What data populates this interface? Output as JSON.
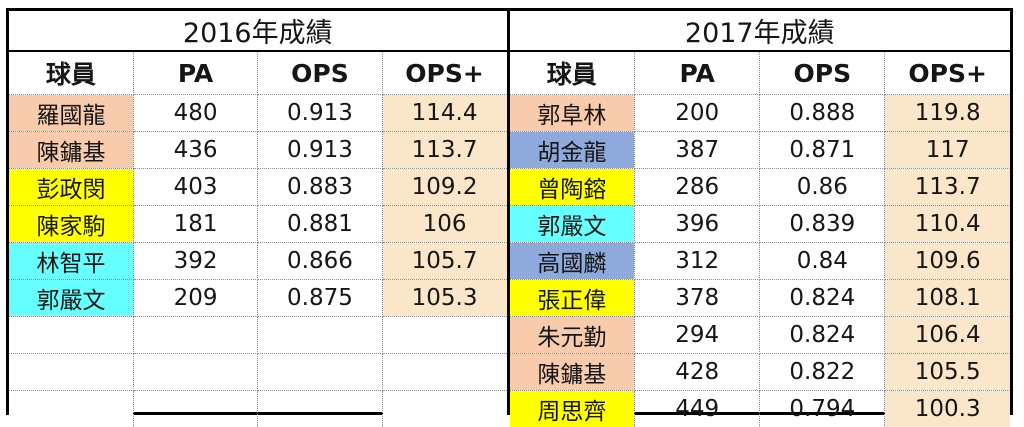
{
  "colors": {
    "salmon": "#F8CBAD",
    "yellow": "#FFFF00",
    "cyan": "#66FFFF",
    "blue": "#8EA9DB",
    "cream": "#FAE6C8",
    "white": "#FFFFFF"
  },
  "chart_data": [
    {
      "type": "table",
      "title": "2016年成績",
      "columns": [
        "球員",
        "PA",
        "OPS",
        "OPS+"
      ],
      "rows": [
        {
          "player": "羅國龍",
          "pa": "480",
          "ops": "0.913",
          "ops_plus": "114.4",
          "name_bg": "salmon",
          "opsplus_bg": "cream"
        },
        {
          "player": "陳鏞基",
          "pa": "436",
          "ops": "0.913",
          "ops_plus": "113.7",
          "name_bg": "salmon",
          "opsplus_bg": "cream"
        },
        {
          "player": "彭政閔",
          "pa": "403",
          "ops": "0.883",
          "ops_plus": "109.2",
          "name_bg": "yellow",
          "opsplus_bg": "cream"
        },
        {
          "player": "陳家駒",
          "pa": "181",
          "ops": "0.881",
          "ops_plus": "106",
          "name_bg": "yellow",
          "opsplus_bg": "cream"
        },
        {
          "player": "林智平",
          "pa": "392",
          "ops": "0.866",
          "ops_plus": "105.7",
          "name_bg": "cyan",
          "opsplus_bg": "cream"
        },
        {
          "player": "郭嚴文",
          "pa": "209",
          "ops": "0.875",
          "ops_plus": "105.3",
          "name_bg": "cyan",
          "opsplus_bg": "cream"
        },
        {
          "player": "",
          "pa": "",
          "ops": "",
          "ops_plus": "",
          "name_bg": "white",
          "opsplus_bg": "white"
        },
        {
          "player": "",
          "pa": "",
          "ops": "",
          "ops_plus": "",
          "name_bg": "white",
          "opsplus_bg": "white"
        },
        {
          "player": "",
          "pa": "",
          "ops": "",
          "ops_plus": "",
          "name_bg": "white",
          "opsplus_bg": "white"
        }
      ]
    },
    {
      "type": "table",
      "title": "2017年成績",
      "columns": [
        "球員",
        "PA",
        "OPS",
        "OPS+"
      ],
      "rows": [
        {
          "player": "郭阜林",
          "pa": "200",
          "ops": "0.888",
          "ops_plus": "119.8",
          "name_bg": "salmon",
          "opsplus_bg": "cream"
        },
        {
          "player": "胡金龍",
          "pa": "387",
          "ops": "0.871",
          "ops_plus": "117",
          "name_bg": "blue",
          "opsplus_bg": "cream"
        },
        {
          "player": "曾陶鎔",
          "pa": "286",
          "ops": "0.86",
          "ops_plus": "113.7",
          "name_bg": "yellow",
          "opsplus_bg": "cream"
        },
        {
          "player": "郭嚴文",
          "pa": "396",
          "ops": "0.839",
          "ops_plus": "110.4",
          "name_bg": "cyan",
          "opsplus_bg": "cream"
        },
        {
          "player": "高國麟",
          "pa": "312",
          "ops": "0.84",
          "ops_plus": "109.6",
          "name_bg": "blue",
          "opsplus_bg": "cream"
        },
        {
          "player": "張正偉",
          "pa": "378",
          "ops": "0.824",
          "ops_plus": "108.1",
          "name_bg": "yellow",
          "opsplus_bg": "cream"
        },
        {
          "player": "朱元勤",
          "pa": "294",
          "ops": "0.824",
          "ops_plus": "106.4",
          "name_bg": "salmon",
          "opsplus_bg": "cream"
        },
        {
          "player": "陳鏞基",
          "pa": "428",
          "ops": "0.822",
          "ops_plus": "105.5",
          "name_bg": "salmon",
          "opsplus_bg": "cream"
        },
        {
          "player": "周思齊",
          "pa": "449",
          "ops": "0.794",
          "ops_plus": "100.3",
          "name_bg": "yellow",
          "opsplus_bg": "cream"
        }
      ]
    }
  ]
}
